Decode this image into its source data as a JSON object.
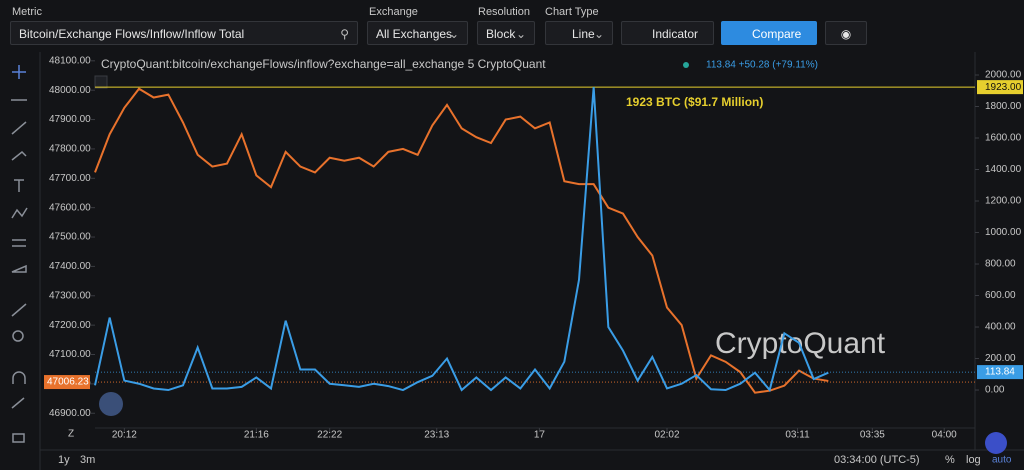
{
  "toolbar": {
    "metric_label": "Metric",
    "metric": "Bitcoin/Exchange Flows/Inflow/Inflow Total",
    "exchange_label": "Exchange",
    "exchange": "All Exchanges",
    "resolution_label": "Resolution",
    "resolution": "Block",
    "chart_type_label": "Chart Type",
    "chart_type": "Line",
    "indicator": "Indicator",
    "compare": "Compare"
  },
  "chart_data": {
    "type": "line",
    "legend_source": "CryptoQuant:bitcoin/exchangeFlows/inflow?exchange=all_exchange  5  CryptoQuant",
    "legend_value": "113.84 +50.28 (+79.11%)",
    "watermark": "CryptoQuant",
    "x": [
      0,
      1,
      2,
      3,
      4,
      5,
      6,
      7,
      8,
      9,
      10,
      11,
      12,
      13,
      14,
      15,
      16,
      17,
      18,
      19,
      20,
      21,
      22,
      23,
      24,
      25,
      26,
      27,
      28,
      29,
      30,
      31,
      32,
      33,
      34,
      35,
      36,
      37,
      38,
      39,
      40,
      41,
      42,
      43,
      44,
      45,
      46,
      47,
      48,
      49,
      50
    ],
    "xlim": [
      0,
      60
    ],
    "xticks": [
      {
        "value": 2,
        "label": "20:12"
      },
      {
        "value": 11,
        "label": "21:16"
      },
      {
        "value": 16,
        "label": "22:22"
      },
      {
        "value": 23.3,
        "label": "23:13"
      },
      {
        "value": 30.3,
        "label": "17"
      },
      {
        "value": 39,
        "label": "02:02"
      },
      {
        "value": 47.9,
        "label": "03:11"
      },
      {
        "value": 53,
        "label": "03:35"
      },
      {
        "value": 57.9,
        "label": "04:00"
      }
    ],
    "ylim": [
      46860,
      48130
    ],
    "yticks": [
      {
        "value": 46900,
        "label": "46900.00"
      },
      {
        "value": 47000,
        "label": "47000.00"
      },
      {
        "value": 47100,
        "label": "47100.00"
      },
      {
        "value": 47200,
        "label": "47200.00"
      },
      {
        "value": 47300,
        "label": "47300.00"
      },
      {
        "value": 47400,
        "label": "47400.00"
      },
      {
        "value": 47500,
        "label": "47500.00"
      },
      {
        "value": 47600,
        "label": "47600.00"
      },
      {
        "value": 47700,
        "label": "47700.00"
      },
      {
        "value": 47800,
        "label": "47800.00"
      },
      {
        "value": 47900,
        "label": "47900.00"
      },
      {
        "value": 48000,
        "label": "48000.00"
      },
      {
        "value": 48100,
        "label": "48100.00"
      }
    ],
    "y2lim": [
      -222,
      2146
    ],
    "y2ticks": [
      {
        "value": 0,
        "label": "0.00"
      },
      {
        "value": 200,
        "label": "200.00"
      },
      {
        "value": 400,
        "label": "400.00"
      },
      {
        "value": 600,
        "label": "600.00"
      },
      {
        "value": 800,
        "label": "800.00"
      },
      {
        "value": 1000,
        "label": "1000.00"
      },
      {
        "value": 1200,
        "label": "1200.00"
      },
      {
        "value": 1400,
        "label": "1400.00"
      },
      {
        "value": 1600,
        "label": "1600.00"
      },
      {
        "value": 1800,
        "label": "1800.00"
      },
      {
        "value": 2000,
        "label": "2000.00"
      }
    ],
    "series": [
      {
        "color": "#e8722c",
        "axis": "y",
        "last": 47006.23,
        "values": [
          47720,
          47850,
          47940,
          48005,
          47975,
          47985,
          47890,
          47780,
          47740,
          47750,
          47850,
          47710,
          47670,
          47790,
          47740,
          47720,
          47770,
          47760,
          47770,
          47740,
          47790,
          47800,
          47780,
          47880,
          47950,
          47870,
          47840,
          47820,
          47900,
          47910,
          47870,
          47890,
          47690,
          47680,
          47680,
          47600,
          47580,
          47500,
          47437,
          47260,
          47200,
          47018,
          47097,
          47075,
          47040,
          46970,
          46977,
          46994,
          47045,
          47018,
          47010
        ]
      },
      {
        "color": "#3a9de6",
        "axis": "y2",
        "last": 113.84,
        "values": [
          30,
          460,
          60,
          40,
          10,
          0,
          30,
          270,
          10,
          10,
          20,
          80,
          10,
          440,
          130,
          130,
          40,
          30,
          20,
          40,
          25,
          0,
          50,
          90,
          200,
          0,
          80,
          0,
          80,
          10,
          130,
          10,
          180,
          700,
          1923,
          400,
          250,
          60,
          210,
          10,
          40,
          95,
          5,
          0,
          40,
          110,
          0,
          360,
          300,
          70,
          110
        ]
      }
    ],
    "hline": {
      "value": 1923,
      "label": "1923.00",
      "color": "#e6cf2e"
    },
    "annotation": "1923 BTC ($91.7 Million)",
    "footer": {
      "range_1y": "1y",
      "range_3m": "3m",
      "time": "03:34:00 (UTC-5)",
      "percent": "%",
      "log": "log",
      "auto": "auto",
      "zoom": "Z"
    }
  }
}
